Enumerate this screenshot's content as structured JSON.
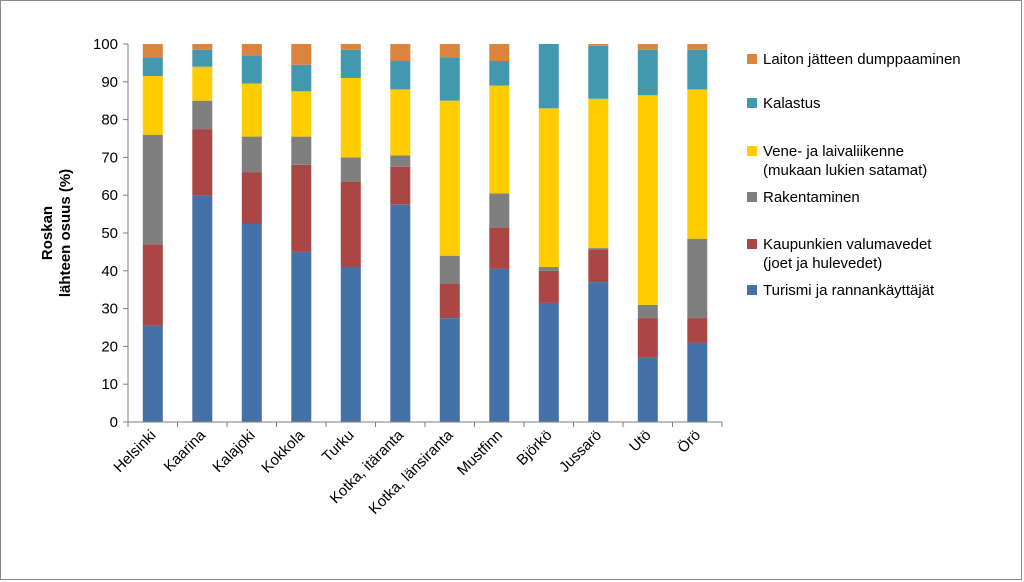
{
  "chart_data": {
    "type": "bar",
    "stacked": true,
    "ylabel_lines": [
      "Roskan",
      "lähteen osuus (%)"
    ],
    "ylim": [
      0,
      100
    ],
    "yticks": [
      0,
      10,
      20,
      30,
      40,
      50,
      60,
      70,
      80,
      90,
      100
    ],
    "grid": false,
    "legend_position": "right",
    "categories": [
      "Helsinki",
      "Kaarina",
      "Kalajoki",
      "Kokkola",
      "Turku",
      "Kotka, itäranta",
      "Kotka, länsiranta",
      "Mustfinn",
      "Björkö",
      "Jussarö",
      "Utö",
      "Örö"
    ],
    "series": [
      {
        "name": "Turismi ja rannankäyttäjät",
        "color": "#4472A8",
        "values": [
          25.5,
          60,
          52.5,
          45,
          41,
          57.5,
          27.5,
          40.5,
          31.5,
          37,
          17,
          21
        ]
      },
      {
        "name": "Kaupunkien valumavedet (joet ja hulevedet)",
        "color": "#AA4643",
        "values": [
          21.5,
          17.5,
          13.5,
          23,
          22.5,
          10,
          9,
          11,
          8.5,
          8.5,
          10.5,
          6.5
        ]
      },
      {
        "name": "Rakentaminen",
        "color": "#7F7F7F",
        "values": [
          29,
          7.5,
          9.5,
          7.5,
          6.5,
          3,
          7.5,
          9,
          1,
          0.5,
          3.5,
          21
        ]
      },
      {
        "name": "Vene- ja laivaliikenne (mukaan lukien satamat)",
        "color": "#FFCC00",
        "values": [
          15.5,
          9,
          14,
          12,
          21,
          17.5,
          41,
          28.5,
          42,
          39.5,
          55.5,
          39.5
        ]
      },
      {
        "name": "Kalastus",
        "color": "#4198AF",
        "values": [
          5,
          4.5,
          7.5,
          7,
          7.5,
          7.5,
          11.5,
          6.5,
          17,
          14,
          12,
          10.5
        ]
      },
      {
        "name": "Laiton jätteen dumppaaminen",
        "color": "#DB843D",
        "values": [
          3.5,
          1.5,
          3,
          5.5,
          1.5,
          4.5,
          3.5,
          4.5,
          0,
          0.5,
          1.5,
          1.5
        ]
      }
    ],
    "legend": [
      {
        "lines": [
          "Laiton jätteen dumppaaminen"
        ],
        "color": "#DB843D"
      },
      {
        "lines": [
          "Kalastus"
        ],
        "color": "#4198AF"
      },
      {
        "lines": [
          "Vene- ja laivaliikenne",
          "(mukaan lukien satamat)"
        ],
        "color": "#FFCC00"
      },
      {
        "lines": [
          "Rakentaminen"
        ],
        "color": "#7F7F7F"
      },
      {
        "lines": [
          "Kaupunkien valumavedet",
          "(joet ja hulevedet)"
        ],
        "color": "#AA4643"
      },
      {
        "lines": [
          "Turismi ja rannankäyttäjät"
        ],
        "color": "#4472A8"
      }
    ]
  }
}
